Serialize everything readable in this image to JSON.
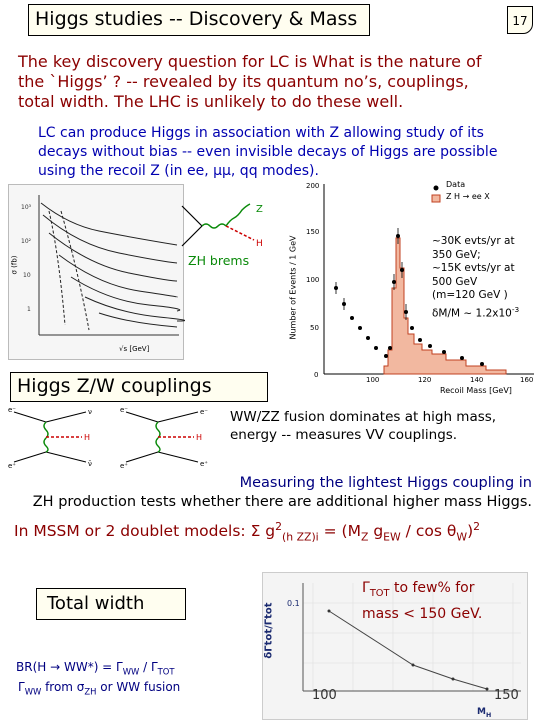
{
  "slide": {
    "title": "Higgs studies -- Discovery & Mass",
    "page_number": "17"
  },
  "intro": {
    "line1": "The key discovery question for LC is What is the nature of",
    "line2": "the `Higgs’ ? -- revealed by its quantum no’s, couplings,",
    "line3": "total width.  The LHC is unlikely to do these well."
  },
  "recoil": {
    "line1": "LC can produce Higgs in association with Z allowing study of its",
    "line2": "decays without bias -- even invisible decays of Higgs are possible",
    "line3": "using the recoil Z (in ee, μμ, qq modes)."
  },
  "cross_section_plot": {
    "y_axis_label": "σ (fb)",
    "x_axis_label": "√s  [GeV]",
    "zh_label": "ZH brems"
  },
  "recoil_histogram": {
    "y_axis_label": "Number of Events / 1 GeV",
    "x_axis_label": "Recoil Mass  [GeV]",
    "legend_data": "Data",
    "legend_mc": "Z H → ee X",
    "y_ticks": [
      "0",
      "50",
      "100",
      "150",
      "200"
    ],
    "x_ticks": [
      "100",
      "120",
      "140",
      "160"
    ],
    "annotation_lines": [
      "~30K evts/yr  at",
      "350 GeV;",
      "~15K evts/yr  at",
      "500 GeV",
      "(m=120 GeV )",
      "δM/M ~ 1.2x10",
      "-3"
    ]
  },
  "couplings": {
    "heading": "Higgs Z/W couplings",
    "ww_line1": "WW/ZZ fusion dominates at high mass,",
    "ww_line2": "energy -- measures VV couplings.",
    "measure_line1": "Measuring the lightest Higgs coupling in",
    "measure_line2": "ZH production tests whether there are additional higher mass Higgs.",
    "mssm_prefix": "In MSSM or 2 doublet models:  Σ g",
    "mssm_sup": "2",
    "mssm_sub": "(h ZZ)i",
    "mssm_mid": " = (M",
    "mssm_z": "Z",
    "mssm_g": " g",
    "mssm_ew": "EW",
    "mssm_cos": " / cos θ",
    "mssm_w": "W",
    "mssm_close": ")",
    "mssm_sq": "2"
  },
  "width": {
    "heading": "Total width",
    "br_text": "BR(H → WW*) = Γ",
    "br_ww": "WW",
    "br_slash": " / Γ",
    "br_tot": "TOT",
    "gamma_line": "Γ",
    "gamma_ww": "WW",
    "gamma_from": " from σ",
    "gamma_zh": "ZH",
    "gamma_tail": " or  WW fusion",
    "gtot_text": "Γ",
    "gtot_sub": "TOT",
    "gtot_line1_tail": " to few% for",
    "gtot_line2": "mass < 150 GeV.",
    "plot_y_label": "δΓtot/Γtot",
    "plot_x_label": "M",
    "plot_x_sub": "H",
    "plot_y_tick": "0.1",
    "tick_100": "100",
    "tick_150": "150"
  }
}
